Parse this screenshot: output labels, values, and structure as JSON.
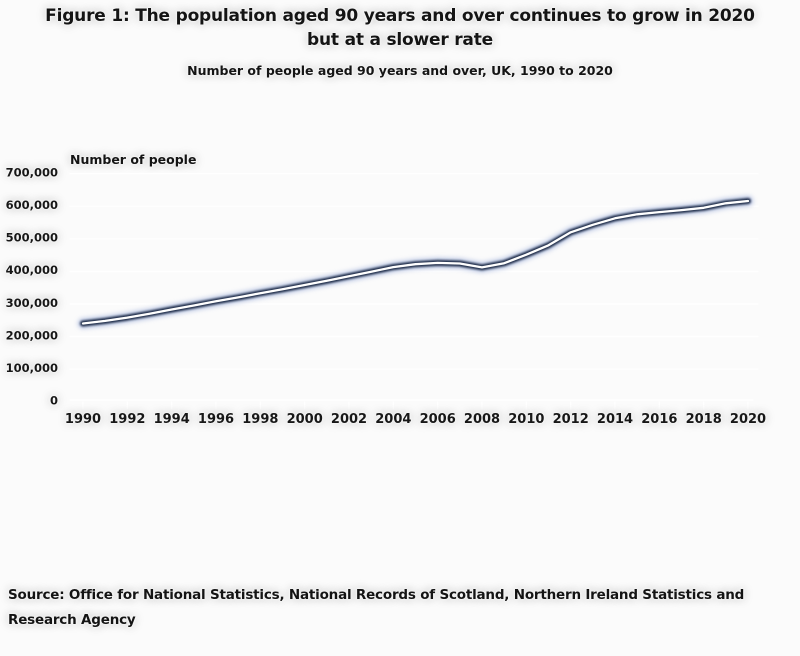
{
  "figure": {
    "title_line1": "Figure 1: The population aged 90 years and over continues to grow in 2020",
    "title_line2": "but at a slower rate",
    "subtitle": "Number of people aged 90 years and over, UK, 1990 to 2020",
    "source_line1": "Source: Office for National Statistics, National Records of Scotland, Northern Ireland Statistics and",
    "source_line2": "Research Agency"
  },
  "chart_data": {
    "type": "line",
    "title": "Figure 1: The population aged 90 years and over continues to grow in 2020 but at a slower rate",
    "subtitle": "Number of people aged 90 years and over, UK, 1990 to 2020",
    "ylabel": "Number of people",
    "xlabel": "",
    "x": [
      1990,
      1991,
      1992,
      1993,
      1994,
      1995,
      1996,
      1997,
      1998,
      1999,
      2000,
      2001,
      2002,
      2003,
      2004,
      2005,
      2006,
      2007,
      2008,
      2009,
      2010,
      2011,
      2012,
      2013,
      2014,
      2015,
      2016,
      2017,
      2018,
      2019,
      2020
    ],
    "series": [
      {
        "name": "People aged 90 years and over",
        "values": [
          235000,
          243000,
          253000,
          265000,
          278000,
          290000,
          303000,
          315000,
          328000,
          340000,
          353000,
          366000,
          380000,
          394000,
          408000,
          417000,
          421000,
          419000,
          407000,
          420000,
          446000,
          475000,
          515000,
          538000,
          558000,
          570000,
          577000,
          583000,
          590000,
          604000,
          611000
        ]
      }
    ],
    "ylim": [
      0,
      700000
    ],
    "ytick_step": 100000,
    "ytick_labels": [
      "0",
      "100,000",
      "200,000",
      "300,000",
      "400,000",
      "500,000",
      "600,000",
      "700,000"
    ],
    "xtick_years": [
      1990,
      1992,
      1994,
      1996,
      1998,
      2000,
      2002,
      2004,
      2006,
      2008,
      2010,
      2012,
      2014,
      2016,
      2018,
      2020
    ],
    "grid": "horizontal gridlines on",
    "legend_position": "none",
    "colors": {
      "line_edge": "#1d2b47",
      "line_core": "#ffffff",
      "line_glow": "#aebce0",
      "axis_line": "#a3b1de",
      "gridline": "#9e9e9e",
      "text": "#171717",
      "background": "#fbfbfb"
    }
  }
}
